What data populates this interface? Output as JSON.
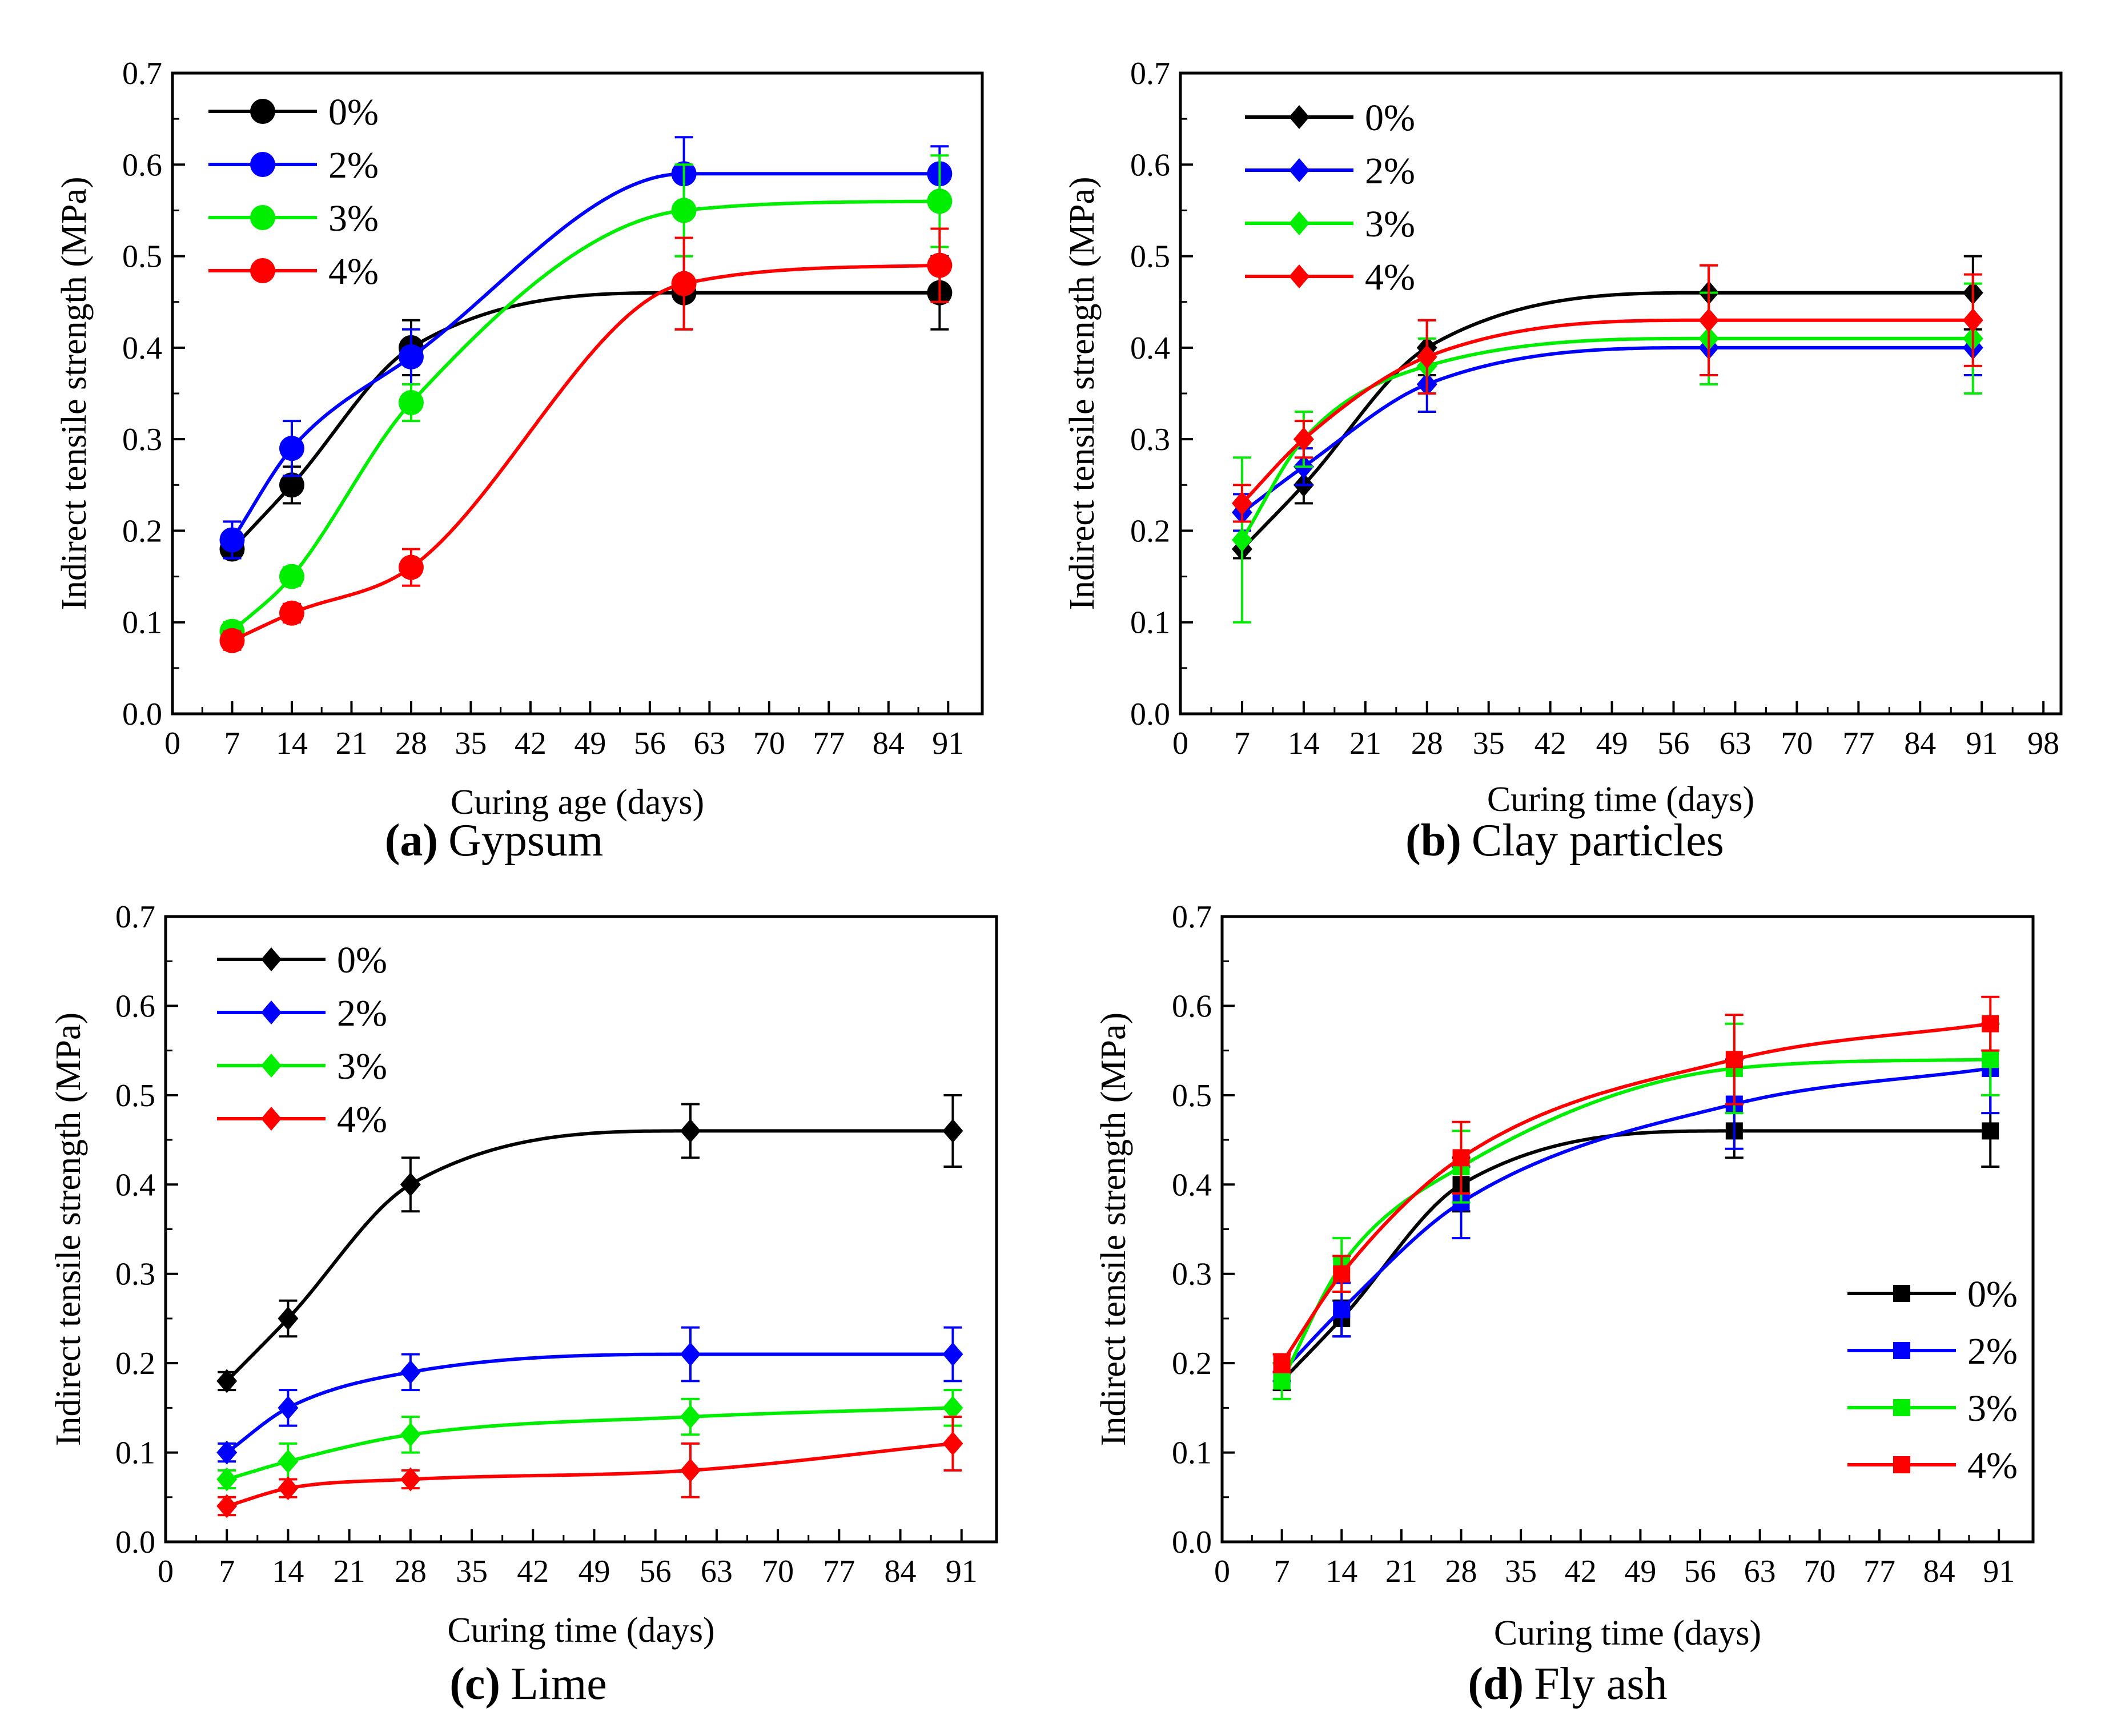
{
  "figure": {
    "panels": [
      {
        "caption_letter": "(a)",
        "caption_text": "Gypsum"
      },
      {
        "caption_letter": "(b)",
        "caption_text": "Clay particles"
      },
      {
        "caption_letter": "(c)",
        "caption_text": "Lime"
      },
      {
        "caption_letter": "(d)",
        "caption_text": "Fly ash"
      }
    ]
  },
  "chart_data": [
    {
      "type": "line",
      "title": "(a) Gypsum",
      "xlabel": "Curing age (days)",
      "ylabel": "Indirect tensile strength (MPa)",
      "xlim": [
        0,
        95
      ],
      "ylim": [
        0,
        0.7
      ],
      "xticks": [
        0,
        7,
        14,
        21,
        28,
        35,
        42,
        49,
        56,
        63,
        70,
        77,
        84,
        91
      ],
      "yticks": [
        0.0,
        0.1,
        0.2,
        0.3,
        0.4,
        0.5,
        0.6,
        0.7
      ],
      "ytick_labels": [
        "0.0",
        "0.1",
        "0.2",
        "0.3",
        "0.4",
        "0.5",
        "0.6",
        "0.7"
      ],
      "marker": "circle",
      "legend_position": "top-left",
      "x": [
        7,
        14,
        28,
        60,
        90
      ],
      "series": [
        {
          "name": "0%",
          "color": "#000000",
          "values": [
            0.18,
            0.25,
            0.4,
            0.46,
            0.46
          ],
          "errors": [
            0.01,
            0.02,
            0.03,
            0.04,
            0.04
          ]
        },
        {
          "name": "2%",
          "color": "#0000ff",
          "values": [
            0.19,
            0.29,
            0.39,
            0.59,
            0.59
          ],
          "errors": [
            0.02,
            0.03,
            0.03,
            0.04,
            0.03
          ]
        },
        {
          "name": "3%",
          "color": "#00ee00",
          "values": [
            0.09,
            0.15,
            0.34,
            0.55,
            0.56
          ],
          "errors": [
            0.01,
            0.01,
            0.02,
            0.05,
            0.05
          ]
        },
        {
          "name": "4%",
          "color": "#ff0000",
          "values": [
            0.08,
            0.11,
            0.16,
            0.47,
            0.49
          ],
          "errors": [
            0.01,
            0.01,
            0.02,
            0.05,
            0.04
          ]
        }
      ]
    },
    {
      "type": "line",
      "title": "(b) Clay particles",
      "xlabel": "Curing time (days)",
      "ylabel": "Indirect tensile strength (MPa)",
      "xlim": [
        0,
        100
      ],
      "ylim": [
        0,
        0.7
      ],
      "xticks": [
        0,
        7,
        14,
        21,
        28,
        35,
        42,
        49,
        56,
        63,
        70,
        77,
        84,
        91,
        98
      ],
      "yticks": [
        0.0,
        0.1,
        0.2,
        0.3,
        0.4,
        0.5,
        0.6,
        0.7
      ],
      "ytick_labels": [
        "0.0",
        "0.1",
        "0.2",
        "0.3",
        "0.4",
        "0.5",
        "0.6",
        "0.7"
      ],
      "marker": "diamond",
      "legend_position": "top-left",
      "x": [
        7,
        14,
        28,
        60,
        90
      ],
      "series": [
        {
          "name": "0%",
          "color": "#000000",
          "values": [
            0.18,
            0.25,
            0.4,
            0.46,
            0.46
          ],
          "errors": [
            0.01,
            0.02,
            0.03,
            0.03,
            0.04
          ]
        },
        {
          "name": "2%",
          "color": "#0000ff",
          "values": [
            0.22,
            0.27,
            0.36,
            0.4,
            0.4
          ],
          "errors": [
            0.02,
            0.02,
            0.03,
            0.03,
            0.03
          ]
        },
        {
          "name": "3%",
          "color": "#00ee00",
          "values": [
            0.19,
            0.3,
            0.38,
            0.41,
            0.41
          ],
          "errors": [
            0.09,
            0.03,
            0.03,
            0.05,
            0.06
          ]
        },
        {
          "name": "4%",
          "color": "#ff0000",
          "values": [
            0.23,
            0.3,
            0.39,
            0.43,
            0.43
          ],
          "errors": [
            0.02,
            0.02,
            0.04,
            0.06,
            0.05
          ]
        }
      ]
    },
    {
      "type": "line",
      "title": "(c) Lime",
      "xlabel": "Curing time (days)",
      "ylabel": "Indirect tensile strength (MPa)",
      "xlim": [
        0,
        95
      ],
      "ylim": [
        0,
        0.7
      ],
      "xticks": [
        0,
        7,
        14,
        21,
        28,
        35,
        42,
        49,
        56,
        63,
        70,
        77,
        84,
        91
      ],
      "yticks": [
        0.0,
        0.1,
        0.2,
        0.3,
        0.4,
        0.5,
        0.6,
        0.7
      ],
      "ytick_labels": [
        "0.0",
        "0.1",
        "0.2",
        "0.3",
        "0.4",
        "0.5",
        "0.6",
        "0.7"
      ],
      "marker": "diamond",
      "legend_position": "top-left",
      "x": [
        7,
        14,
        28,
        60,
        90
      ],
      "series": [
        {
          "name": "0%",
          "color": "#000000",
          "values": [
            0.18,
            0.25,
            0.4,
            0.46,
            0.46
          ],
          "errors": [
            0.01,
            0.02,
            0.03,
            0.03,
            0.04
          ]
        },
        {
          "name": "2%",
          "color": "#0000ff",
          "values": [
            0.1,
            0.15,
            0.19,
            0.21,
            0.21
          ],
          "errors": [
            0.01,
            0.02,
            0.02,
            0.03,
            0.03
          ]
        },
        {
          "name": "3%",
          "color": "#00ee00",
          "values": [
            0.07,
            0.09,
            0.12,
            0.14,
            0.15
          ],
          "errors": [
            0.01,
            0.02,
            0.02,
            0.02,
            0.02
          ]
        },
        {
          "name": "4%",
          "color": "#ff0000",
          "values": [
            0.04,
            0.06,
            0.07,
            0.08,
            0.11
          ],
          "errors": [
            0.01,
            0.01,
            0.01,
            0.03,
            0.03
          ]
        }
      ]
    },
    {
      "type": "line",
      "title": "(d) Fly ash",
      "xlabel": "Curing time (days)",
      "ylabel": "Indirect tensile strength (MPa)",
      "xlim": [
        0,
        95
      ],
      "ylim": [
        0,
        0.7
      ],
      "xticks": [
        0,
        7,
        14,
        21,
        28,
        35,
        42,
        49,
        56,
        63,
        70,
        77,
        84,
        91
      ],
      "yticks": [
        0.0,
        0.1,
        0.2,
        0.3,
        0.4,
        0.5,
        0.6,
        0.7
      ],
      "ytick_labels": [
        "0.0",
        "0.1",
        "0.2",
        "0.3",
        "0.4",
        "0.5",
        "0.6",
        "0.7"
      ],
      "marker": "square",
      "legend_position": "bottom-right",
      "x": [
        7,
        14,
        28,
        60,
        90
      ],
      "series": [
        {
          "name": "0%",
          "color": "#000000",
          "values": [
            0.18,
            0.25,
            0.4,
            0.46,
            0.46
          ],
          "errors": [
            0.01,
            0.02,
            0.03,
            0.03,
            0.04
          ]
        },
        {
          "name": "2%",
          "color": "#0000ff",
          "values": [
            0.19,
            0.26,
            0.38,
            0.49,
            0.53
          ],
          "errors": [
            0.01,
            0.03,
            0.04,
            0.05,
            0.05
          ]
        },
        {
          "name": "3%",
          "color": "#00ee00",
          "values": [
            0.18,
            0.31,
            0.42,
            0.53,
            0.54
          ],
          "errors": [
            0.02,
            0.03,
            0.04,
            0.05,
            0.04
          ]
        },
        {
          "name": "4%",
          "color": "#ff0000",
          "values": [
            0.2,
            0.3,
            0.43,
            0.54,
            0.58
          ],
          "errors": [
            0.01,
            0.02,
            0.04,
            0.05,
            0.03
          ]
        }
      ]
    }
  ]
}
